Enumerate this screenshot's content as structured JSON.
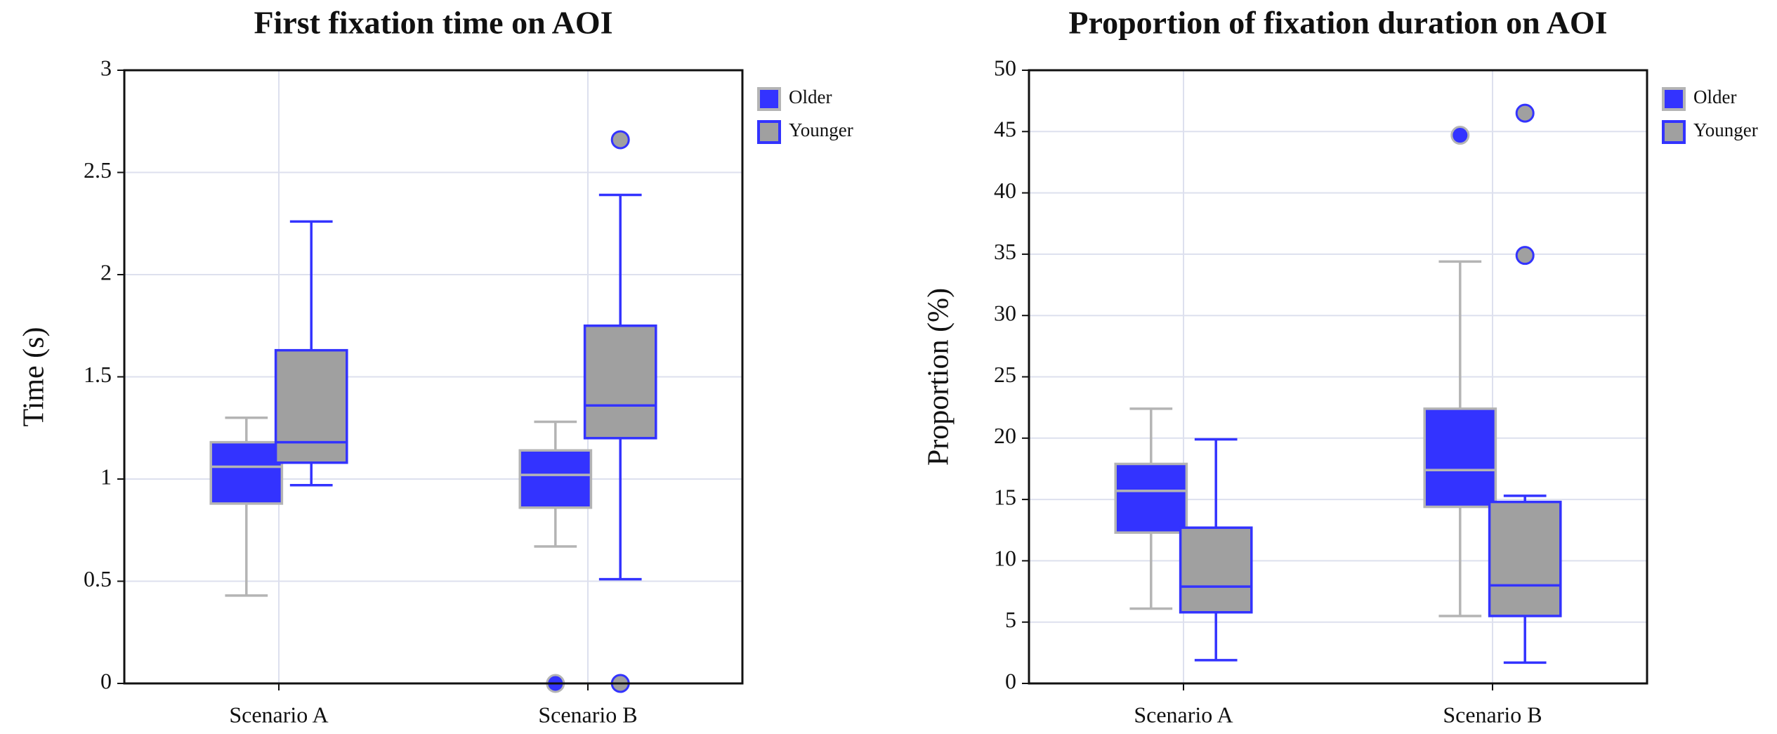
{
  "chart_data": [
    {
      "type": "box",
      "title": "First fixation time on AOI",
      "ylabel": "Time (s)",
      "categories": [
        "Scenario A",
        "Scenario B"
      ],
      "ylim": [
        0,
        3
      ],
      "yticks": [
        0,
        0.5,
        1,
        1.5,
        2,
        2.5,
        3
      ],
      "grid": true,
      "series": [
        {
          "name": "Older",
          "color": "#3333ff",
          "edgecolor": "#b4b4b4",
          "values": [
            {
              "whislo": 0.43,
              "q1": 0.88,
              "med": 1.06,
              "q3": 1.18,
              "whishi": 1.3,
              "fliers": []
            },
            {
              "whislo": 0.67,
              "q1": 0.86,
              "med": 1.02,
              "q3": 1.14,
              "whishi": 1.28,
              "fliers": [
                0
              ]
            }
          ]
        },
        {
          "name": "Younger",
          "color": "#a0a0a0",
          "edgecolor": "#3333ff",
          "values": [
            {
              "whislo": 0.97,
              "q1": 1.08,
              "med": 1.18,
              "q3": 1.63,
              "whishi": 2.26,
              "fliers": []
            },
            {
              "whislo": 0.51,
              "q1": 1.2,
              "med": 1.36,
              "q3": 1.75,
              "whishi": 2.39,
              "fliers": [
                0,
                2.66
              ]
            }
          ]
        }
      ]
    },
    {
      "type": "box",
      "title": "Proportion of fixation duration on AOI",
      "ylabel": "Proportion (%)",
      "categories": [
        "Scenario A",
        "Scenario B"
      ],
      "ylim": [
        0,
        50
      ],
      "yticks": [
        0,
        5,
        10,
        15,
        20,
        25,
        30,
        35,
        40,
        45,
        50
      ],
      "grid": true,
      "series": [
        {
          "name": "Older",
          "color": "#3333ff",
          "edgecolor": "#b4b4b4",
          "values": [
            {
              "whislo": 6.1,
              "q1": 12.3,
              "med": 15.7,
              "q3": 17.9,
              "whishi": 22.4,
              "fliers": []
            },
            {
              "whislo": 5.5,
              "q1": 14.4,
              "med": 17.4,
              "q3": 22.4,
              "whishi": 34.4,
              "fliers": [
                44.7
              ]
            }
          ]
        },
        {
          "name": "Younger",
          "color": "#a0a0a0",
          "edgecolor": "#3333ff",
          "values": [
            {
              "whislo": 1.9,
              "q1": 5.8,
              "med": 7.9,
              "q3": 12.7,
              "whishi": 19.9,
              "fliers": []
            },
            {
              "whislo": 1.7,
              "q1": 5.5,
              "med": 8.0,
              "q3": 14.8,
              "whishi": 15.3,
              "fliers": [
                34.9,
                46.5
              ]
            }
          ]
        }
      ]
    }
  ]
}
